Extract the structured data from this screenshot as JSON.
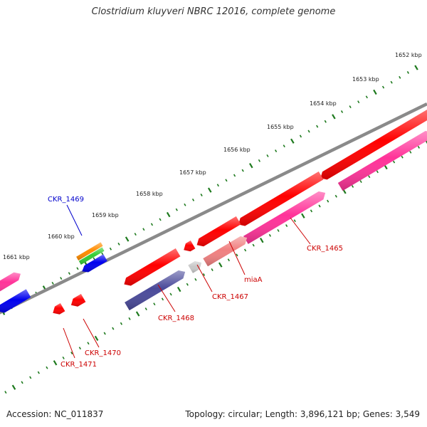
{
  "title": "Clostridium kluyveri NBRC 12016, complete genome",
  "footer": {
    "accession": "Accession: NC_011837",
    "summary": "Topology: circular; Length: 3,896,121 bp; Genes: 3,549"
  },
  "colors": {
    "backbone": "#8a8a8a",
    "tick": "#1e7a1e",
    "red": "#ff0000",
    "pink": "#ff3399",
    "salmon": "#f08080",
    "navy": "#4a4a9a",
    "grey": "#c8c8c8",
    "blue": "#0000ee",
    "orange": "#ff8c00",
    "green": "#33cc33",
    "label_red": "#cc0000",
    "label_blue": "#0000cc"
  },
  "scale_labels": [
    "1652 kbp",
    "1653 kbp",
    "1654 kbp",
    "1655 kbp",
    "1656 kbp",
    "1657 kbp",
    "1658 kbp",
    "1659 kbp",
    "1660 kbp",
    "1661 kbp"
  ],
  "gene_labels": [
    {
      "text": "CKR_1465",
      "color": "red"
    },
    {
      "text": "miaA",
      "color": "red"
    },
    {
      "text": "CKR_1467",
      "color": "red"
    },
    {
      "text": "CKR_1468",
      "color": "red"
    },
    {
      "text": "CKR_1469",
      "color": "blue"
    },
    {
      "text": "CKR_1470",
      "color": "red"
    },
    {
      "text": "CKR_1471",
      "color": "red"
    }
  ],
  "features": [
    {
      "name": "forward-gene",
      "color": "red"
    },
    {
      "name": "forward-gene",
      "color": "red"
    },
    {
      "name": "forward-gene",
      "color": "red"
    },
    {
      "name": "forward-gene",
      "color": "red"
    },
    {
      "name": "forward-gene",
      "color": "red"
    },
    {
      "name": "forward-gene",
      "color": "red"
    },
    {
      "name": "forward-gene",
      "color": "red"
    },
    {
      "name": "forward-gene",
      "color": "red"
    },
    {
      "name": "reverse-gene",
      "color": "pink"
    },
    {
      "name": "reverse-gene",
      "color": "pink"
    },
    {
      "name": "reverse-gene",
      "color": "salmon"
    },
    {
      "name": "reverse-gene",
      "color": "grey"
    },
    {
      "name": "reverse-gene",
      "color": "navy"
    },
    {
      "name": "reverse-gene",
      "color": "pink"
    },
    {
      "name": "reverse-gene",
      "color": "blue"
    },
    {
      "name": "blast-hit",
      "color": "orange"
    },
    {
      "name": "blast-hit",
      "color": "green"
    },
    {
      "name": "blast-hit",
      "color": "blue"
    }
  ]
}
